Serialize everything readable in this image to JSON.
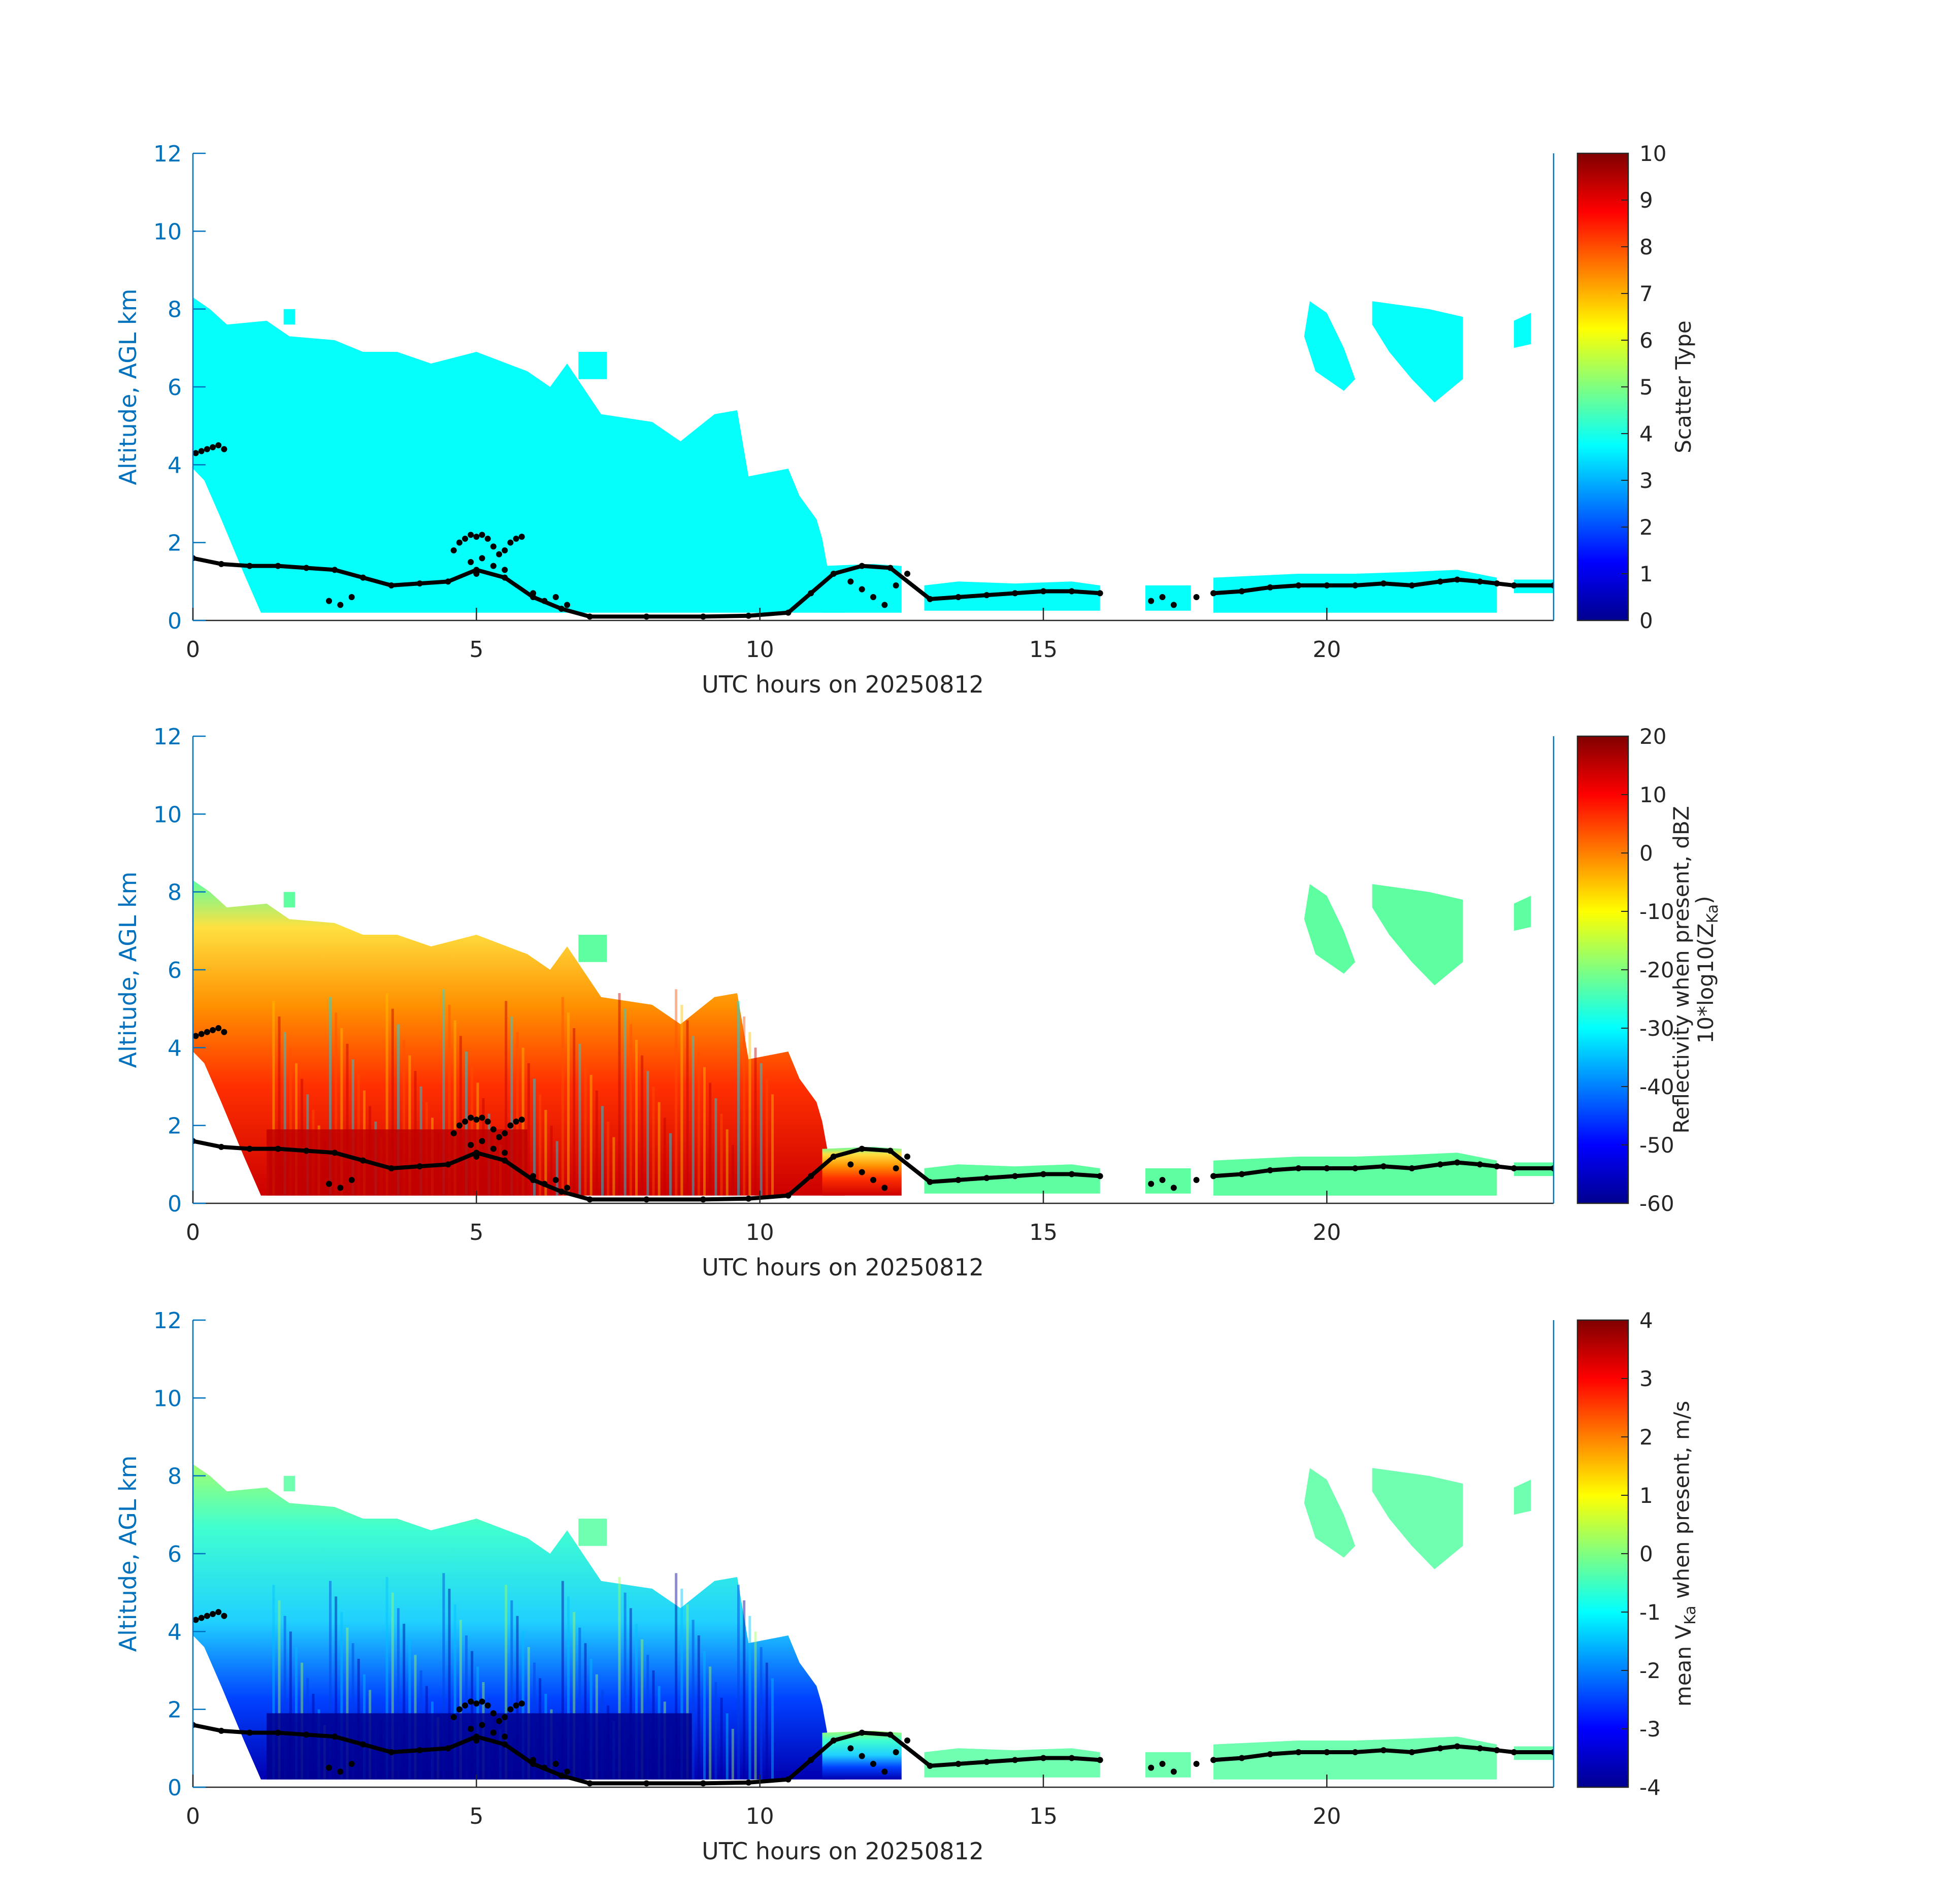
{
  "colors": {
    "axis_blue": "#0072bd",
    "label_black": "#262626",
    "marker": "#000000",
    "jet": [
      "#00008f",
      "#0000ff",
      "#0080ff",
      "#00ffff",
      "#80ff80",
      "#ffff00",
      "#ff8000",
      "#ff0000",
      "#800000"
    ]
  },
  "chart_data": [
    {
      "type": "heatmap",
      "xlabel": "UTC hours on 20250812",
      "ylabel": "Altitude, AGL km",
      "xlim": [
        0,
        24
      ],
      "ylim": [
        0,
        12
      ],
      "x_ticks": [
        0,
        5,
        10,
        15,
        20
      ],
      "y_ticks": [
        0,
        2,
        4,
        6,
        8,
        10,
        12
      ],
      "colorbar": {
        "label_lines": [
          "Scatter Type"
        ],
        "limits": [
          0,
          10
        ],
        "ticks": [
          0,
          1,
          2,
          3,
          4,
          5,
          6,
          7,
          8,
          9,
          10
        ]
      },
      "field": "scatter_type",
      "value": 3.8
    },
    {
      "type": "heatmap",
      "xlabel": "UTC hours on 20250812",
      "ylabel": "Altitude, AGL km",
      "xlim": [
        0,
        24
      ],
      "ylim": [
        0,
        12
      ],
      "x_ticks": [
        0,
        5,
        10,
        15,
        20
      ],
      "y_ticks": [
        0,
        2,
        4,
        6,
        8,
        10,
        12
      ],
      "colorbar": {
        "label_lines": [
          "Reflectivity when present, dBZ",
          "10*log10(Z",
          "Ka",
          ")"
        ],
        "limits": [
          -60,
          20
        ],
        "ticks": [
          20,
          10,
          0,
          -10,
          -20,
          -30,
          -40,
          -50,
          -60
        ]
      },
      "field": "reflectivity"
    },
    {
      "type": "heatmap",
      "xlabel": "UTC hours on 20250812",
      "ylabel": "Altitude, AGL km",
      "xlim": [
        0,
        24
      ],
      "ylim": [
        0,
        12
      ],
      "x_ticks": [
        0,
        5,
        10,
        15,
        20
      ],
      "y_ticks": [
        0,
        2,
        4,
        6,
        8,
        10,
        12
      ],
      "colorbar": {
        "label_lines": [
          "mean V",
          "Ka",
          " when present, m/s"
        ],
        "limits": [
          -4,
          4
        ],
        "ticks": [
          4,
          3,
          2,
          1,
          0,
          -1,
          -2,
          -3,
          -4
        ]
      },
      "field": "velocity"
    }
  ],
  "cloud_regions": [
    {
      "name": "main-precip",
      "points": [
        [
          0,
          8.3
        ],
        [
          0.3,
          8.0
        ],
        [
          0.6,
          7.6
        ],
        [
          1.3,
          7.7
        ],
        [
          1.7,
          7.3
        ],
        [
          2.5,
          7.2
        ],
        [
          3.0,
          6.9
        ],
        [
          3.6,
          6.9
        ],
        [
          4.2,
          6.6
        ],
        [
          5.0,
          6.9
        ],
        [
          5.9,
          6.4
        ],
        [
          6.3,
          6.0
        ],
        [
          6.6,
          6.6
        ],
        [
          7.2,
          5.3
        ],
        [
          8.1,
          5.1
        ],
        [
          8.6,
          4.6
        ],
        [
          9.2,
          5.3
        ],
        [
          9.6,
          5.4
        ],
        [
          9.8,
          3.7
        ],
        [
          10.5,
          3.9
        ],
        [
          10.7,
          3.2
        ],
        [
          11.0,
          2.6
        ],
        [
          11.1,
          2.1
        ],
        [
          11.2,
          1.3
        ],
        [
          11.5,
          0.2
        ],
        [
          1.2,
          0.2
        ],
        [
          0.9,
          1.2
        ],
        [
          0.5,
          2.6
        ],
        [
          0.2,
          3.6
        ],
        [
          0,
          3.9
        ]
      ]
    },
    {
      "name": "low-layer-1",
      "points": [
        [
          11.1,
          1.4
        ],
        [
          12.0,
          1.45
        ],
        [
          12.5,
          1.4
        ],
        [
          12.5,
          0.2
        ],
        [
          11.1,
          0.2
        ]
      ]
    },
    {
      "name": "low-layer-2",
      "points": [
        [
          12.9,
          0.9
        ],
        [
          13.5,
          1.0
        ],
        [
          14.5,
          0.95
        ],
        [
          15.5,
          1.0
        ],
        [
          16.0,
          0.9
        ],
        [
          16.0,
          0.25
        ],
        [
          12.9,
          0.25
        ]
      ]
    },
    {
      "name": "low-layer-3",
      "points": [
        [
          16.8,
          0.9
        ],
        [
          17.6,
          0.9
        ],
        [
          17.6,
          0.25
        ],
        [
          16.8,
          0.25
        ]
      ]
    },
    {
      "name": "low-layer-4",
      "points": [
        [
          18.0,
          1.1
        ],
        [
          19.5,
          1.2
        ],
        [
          20.5,
          1.2
        ],
        [
          21.5,
          1.25
        ],
        [
          22.3,
          1.3
        ],
        [
          23.0,
          1.1
        ],
        [
          23.0,
          0.2
        ],
        [
          18.0,
          0.2
        ]
      ]
    },
    {
      "name": "low-layer-5",
      "points": [
        [
          23.3,
          1.05
        ],
        [
          24.0,
          1.05
        ],
        [
          24.0,
          0.7
        ],
        [
          23.3,
          0.7
        ]
      ]
    },
    {
      "name": "cirrus-1",
      "points": [
        [
          19.7,
          8.2
        ],
        [
          20.0,
          7.9
        ],
        [
          20.3,
          7.0
        ],
        [
          20.5,
          6.2
        ],
        [
          20.3,
          5.9
        ],
        [
          19.8,
          6.4
        ],
        [
          19.6,
          7.3
        ]
      ]
    },
    {
      "name": "cirrus-2",
      "points": [
        [
          20.8,
          8.2
        ],
        [
          21.8,
          8.0
        ],
        [
          22.4,
          7.8
        ],
        [
          22.4,
          6.2
        ],
        [
          21.9,
          5.6
        ],
        [
          21.5,
          6.2
        ],
        [
          21.1,
          6.9
        ],
        [
          20.8,
          7.6
        ]
      ]
    },
    {
      "name": "cirrus-3",
      "points": [
        [
          23.3,
          7.7
        ],
        [
          23.6,
          7.9
        ],
        [
          23.6,
          7.1
        ],
        [
          23.3,
          7.0
        ]
      ]
    },
    {
      "name": "cirrus-4",
      "points": [
        [
          1.6,
          8.0
        ],
        [
          1.8,
          8.0
        ],
        [
          1.8,
          7.6
        ],
        [
          1.6,
          7.6
        ]
      ]
    },
    {
      "name": "cirrus-5",
      "points": [
        [
          6.8,
          6.9
        ],
        [
          7.3,
          6.9
        ],
        [
          7.3,
          6.2
        ],
        [
          6.8,
          6.2
        ]
      ]
    }
  ],
  "markers": {
    "cloud_base_line": [
      [
        0,
        1.6
      ],
      [
        0.5,
        1.45
      ],
      [
        1.0,
        1.4
      ],
      [
        1.5,
        1.4
      ],
      [
        2.0,
        1.35
      ],
      [
        2.5,
        1.3
      ],
      [
        3.0,
        1.1
      ],
      [
        3.5,
        0.9
      ],
      [
        4.0,
        0.95
      ],
      [
        4.5,
        1.0
      ],
      [
        5.0,
        1.3
      ],
      [
        5.5,
        1.1
      ],
      [
        6.0,
        0.6
      ],
      [
        6.5,
        0.3
      ],
      [
        7.0,
        0.1
      ],
      [
        8.0,
        0.1
      ],
      [
        9.0,
        0.1
      ],
      [
        9.8,
        0.12
      ],
      [
        10.5,
        0.2
      ],
      [
        10.9,
        0.7
      ],
      [
        11.3,
        1.2
      ],
      [
        11.8,
        1.4
      ],
      [
        12.3,
        1.35
      ],
      [
        13.0,
        0.55
      ],
      [
        13.5,
        0.6
      ],
      [
        14.0,
        0.65
      ],
      [
        14.5,
        0.7
      ],
      [
        15.0,
        0.75
      ],
      [
        15.5,
        0.75
      ],
      [
        16.0,
        0.7
      ],
      [
        18.0,
        0.7
      ],
      [
        18.5,
        0.75
      ],
      [
        19.0,
        0.85
      ],
      [
        19.5,
        0.9
      ],
      [
        20.0,
        0.9
      ],
      [
        20.5,
        0.9
      ],
      [
        21.0,
        0.95
      ],
      [
        21.5,
        0.9
      ],
      [
        22.0,
        1.0
      ],
      [
        22.3,
        1.05
      ],
      [
        22.7,
        1.0
      ],
      [
        23.0,
        0.95
      ],
      [
        23.3,
        0.9
      ],
      [
        24.0,
        0.9
      ]
    ],
    "scatter": [
      [
        0.05,
        4.3
      ],
      [
        0.15,
        4.35
      ],
      [
        0.25,
        4.4
      ],
      [
        0.35,
        4.45
      ],
      [
        0.45,
        4.5
      ],
      [
        0.55,
        4.4
      ],
      [
        4.6,
        1.8
      ],
      [
        4.7,
        2.0
      ],
      [
        4.8,
        2.1
      ],
      [
        4.9,
        2.2
      ],
      [
        5.0,
        2.15
      ],
      [
        5.1,
        2.2
      ],
      [
        5.2,
        2.1
      ],
      [
        5.3,
        1.9
      ],
      [
        5.4,
        1.7
      ],
      [
        5.5,
        1.8
      ],
      [
        5.6,
        2.0
      ],
      [
        5.7,
        2.1
      ],
      [
        5.8,
        2.15
      ],
      [
        4.9,
        1.5
      ],
      [
        5.0,
        1.2
      ],
      [
        5.1,
        1.6
      ],
      [
        5.3,
        1.4
      ],
      [
        5.5,
        1.3
      ],
      [
        2.4,
        0.5
      ],
      [
        2.6,
        0.4
      ],
      [
        2.8,
        0.6
      ],
      [
        6.0,
        0.7
      ],
      [
        6.2,
        0.5
      ],
      [
        6.4,
        0.6
      ],
      [
        6.6,
        0.4
      ],
      [
        11.6,
        1.0
      ],
      [
        11.8,
        0.8
      ],
      [
        12.0,
        0.6
      ],
      [
        12.2,
        0.4
      ],
      [
        12.4,
        0.9
      ],
      [
        12.6,
        1.2
      ],
      [
        16.9,
        0.5
      ],
      [
        17.1,
        0.6
      ],
      [
        17.3,
        0.4
      ],
      [
        17.7,
        0.6
      ]
    ]
  }
}
